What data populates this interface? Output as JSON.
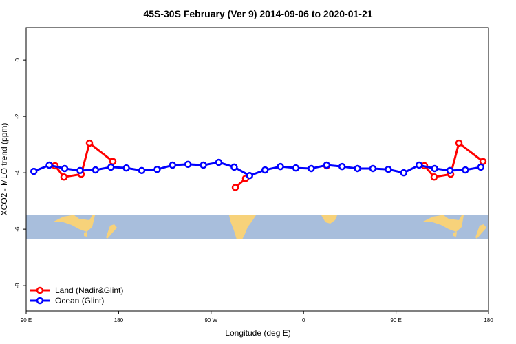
{
  "chart_data": {
    "type": "line",
    "title": "45S-30S February (Ver 9)   2014-09-06 to 2020-01-21",
    "x_label": "Longitude (deg E)",
    "y_label": "XCO2 - MLO trend (ppm)",
    "xlim": [
      90,
      540
    ],
    "ylim": [
      -8.9,
      1.15
    ],
    "xticks": [
      {
        "value": 90,
        "label": "90 E"
      },
      {
        "value": 180,
        "label": "180"
      },
      {
        "value": 270,
        "label": "90 W"
      },
      {
        "value": 360,
        "label": "0"
      },
      {
        "value": 450,
        "label": "90 E"
      },
      {
        "value": 540,
        "label": "180"
      }
    ],
    "yticks": [
      0,
      -2,
      -4,
      -6,
      -8
    ],
    "legend": "bottom-left",
    "series": [
      {
        "name": "Land (Nadir&Glint)",
        "color": "#ff0000",
        "x": [
          118.1,
          126.8,
          143.6,
          151.6,
          174.4,
          null,
          293.6,
          303.6,
          null,
          382.6,
          null,
          477.7,
          487.1,
          503.2,
          511.2,
          534.6
        ],
        "values": [
          -3.75,
          -4.15,
          -4.05,
          -2.95,
          -3.6,
          null,
          -4.52,
          -4.2,
          null,
          -3.75,
          null,
          -3.75,
          -4.15,
          -4.05,
          -2.95,
          -3.6
        ]
      },
      {
        "name": "Ocean (Glint)",
        "color": "#0000ff",
        "x": [
          97.5,
          112.5,
          127.5,
          142.5,
          157.5,
          172.5,
          187.5,
          202.5,
          217.5,
          232.5,
          247.5,
          262.5,
          277.5,
          292.5,
          307.5,
          322.5,
          337.5,
          352.5,
          367.5,
          382.5,
          397.5,
          412.5,
          427.5,
          442.5,
          457.5,
          472.5,
          487.5,
          502.5,
          517.5,
          532.5
        ],
        "values": [
          -3.95,
          -3.73,
          -3.85,
          -3.92,
          -3.9,
          -3.8,
          -3.83,
          -3.92,
          -3.88,
          -3.73,
          -3.7,
          -3.73,
          -3.63,
          -3.8,
          -4.1,
          -3.9,
          -3.78,
          -3.83,
          -3.85,
          -3.73,
          -3.78,
          -3.85,
          -3.85,
          -3.88,
          -4.0,
          -3.73,
          -3.85,
          -3.92,
          -3.9,
          -3.8
        ]
      }
    ]
  }
}
